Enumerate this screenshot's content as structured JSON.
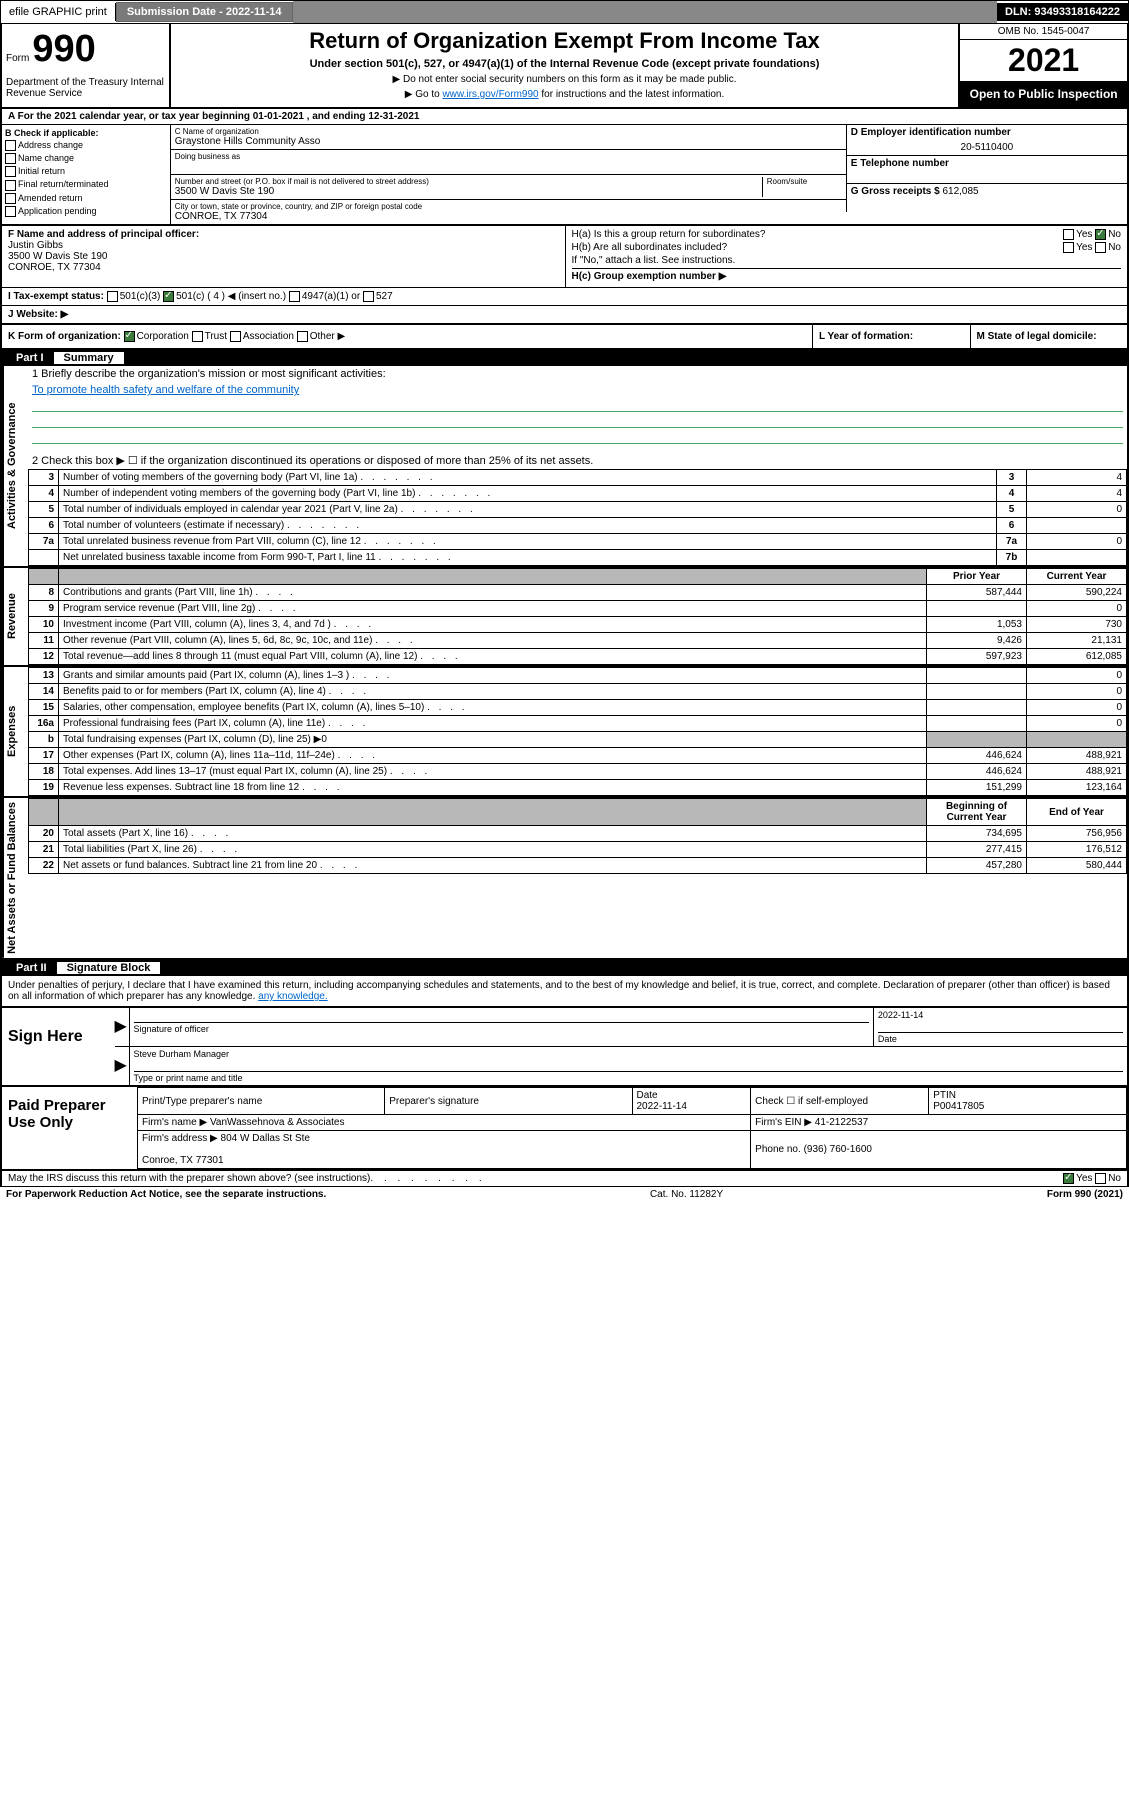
{
  "topbar": {
    "efile": "efile GRAPHIC print",
    "submission_label": "Submission Date - 2022-11-14",
    "dln_label": "DLN: 93493318164222"
  },
  "header": {
    "form_word": "Form",
    "form_num": "990",
    "dept": "Department of the Treasury\nInternal Revenue Service",
    "title": "Return of Organization Exempt From Income Tax",
    "sub": "Under section 501(c), 527, or 4947(a)(1) of the Internal Revenue Code (except private foundations)",
    "line1": "▶ Do not enter social security numbers on this form as it may be made public.",
    "line2_pre": "▶ Go to ",
    "line2_link": "www.irs.gov/Form990",
    "line2_post": " for instructions and the latest information.",
    "omb": "OMB No. 1545-0047",
    "year": "2021",
    "open": "Open to Public Inspection"
  },
  "period": "A For the 2021 calendar year, or tax year beginning 01-01-2021   , and ending 12-31-2021",
  "B": {
    "label": "B Check if applicable:",
    "opts": [
      "Address change",
      "Name change",
      "Initial return",
      "Final return/terminated",
      "Amended return",
      "Application pending"
    ]
  },
  "C": {
    "name_lbl": "C Name of organization",
    "name": "Graystone Hills Community Asso",
    "dba_lbl": "Doing business as",
    "street_lbl": "Number and street (or P.O. box if mail is not delivered to street address)",
    "room_lbl": "Room/suite",
    "street": "3500 W Davis Ste 190",
    "city_lbl": "City or town, state or province, country, and ZIP or foreign postal code",
    "city": "CONROE, TX  77304"
  },
  "D": {
    "lbl": "D Employer identification number",
    "val": "20-5110400"
  },
  "E": {
    "lbl": "E Telephone number",
    "val": ""
  },
  "G": {
    "lbl": "G Gross receipts $",
    "val": "612,085"
  },
  "F": {
    "lbl": "F Name and address of principal officer:",
    "name": "Justin Gibbs",
    "addr1": "3500 W Davis Ste 190",
    "addr2": "CONROE, TX  77304"
  },
  "H": {
    "a": "H(a)  Is this a group return for subordinates?",
    "a_yes": "Yes",
    "a_no": "No",
    "b": "H(b)  Are all subordinates included?",
    "b_yes": "Yes",
    "b_no": "No",
    "b_note": "If \"No,\" attach a list. See instructions.",
    "c": "H(c)  Group exemption number ▶"
  },
  "I": {
    "lbl": "I   Tax-exempt status:",
    "o1": "501(c)(3)",
    "o2": "501(c) ( 4 ) ◀ (insert no.)",
    "o3": "4947(a)(1) or",
    "o4": "527"
  },
  "J": {
    "lbl": "J   Website: ▶"
  },
  "K": {
    "lbl": "K Form of organization:",
    "o1": "Corporation",
    "o2": "Trust",
    "o3": "Association",
    "o4": "Other ▶"
  },
  "L": {
    "lbl": "L Year of formation:"
  },
  "M": {
    "lbl": "M State of legal domicile:"
  },
  "partI": {
    "num": "Part I",
    "title": "Summary"
  },
  "mission": {
    "q": "1   Briefly describe the organization's mission or most significant activities:",
    "text": "To promote health safety and welfare of the community"
  },
  "line2": "2    Check this box ▶ ☐  if the organization discontinued its operations or disposed of more than 25% of its net assets.",
  "vtabs": {
    "ag": "Activities & Governance",
    "rev": "Revenue",
    "exp": "Expenses",
    "na": "Net Assets or Fund Balances"
  },
  "rows_ag": [
    {
      "n": "3",
      "t": "Number of voting members of the governing body (Part VI, line 1a)",
      "box": "3",
      "v": "4"
    },
    {
      "n": "4",
      "t": "Number of independent voting members of the governing body (Part VI, line 1b)",
      "box": "4",
      "v": "4"
    },
    {
      "n": "5",
      "t": "Total number of individuals employed in calendar year 2021 (Part V, line 2a)",
      "box": "5",
      "v": "0"
    },
    {
      "n": "6",
      "t": "Total number of volunteers (estimate if necessary)",
      "box": "6",
      "v": ""
    },
    {
      "n": "7a",
      "t": "Total unrelated business revenue from Part VIII, column (C), line 12",
      "box": "7a",
      "v": "0"
    },
    {
      "n": "",
      "t": "Net unrelated business taxable income from Form 990-T, Part I, line 11",
      "box": "7b",
      "v": ""
    }
  ],
  "col_hdrs": {
    "prior": "Prior Year",
    "current": "Current Year",
    "boy": "Beginning of Current Year",
    "eoy": "End of Year"
  },
  "rows_rev": [
    {
      "n": "8",
      "t": "Contributions and grants (Part VIII, line 1h)",
      "p": "587,444",
      "c": "590,224"
    },
    {
      "n": "9",
      "t": "Program service revenue (Part VIII, line 2g)",
      "p": "",
      "c": "0"
    },
    {
      "n": "10",
      "t": "Investment income (Part VIII, column (A), lines 3, 4, and 7d )",
      "p": "1,053",
      "c": "730"
    },
    {
      "n": "11",
      "t": "Other revenue (Part VIII, column (A), lines 5, 6d, 8c, 9c, 10c, and 11e)",
      "p": "9,426",
      "c": "21,131"
    },
    {
      "n": "12",
      "t": "Total revenue—add lines 8 through 11 (must equal Part VIII, column (A), line 12)",
      "p": "597,923",
      "c": "612,085"
    }
  ],
  "rows_exp": [
    {
      "n": "13",
      "t": "Grants and similar amounts paid (Part IX, column (A), lines 1–3 )",
      "p": "",
      "c": "0"
    },
    {
      "n": "14",
      "t": "Benefits paid to or for members (Part IX, column (A), line 4)",
      "p": "",
      "c": "0"
    },
    {
      "n": "15",
      "t": "Salaries, other compensation, employee benefits (Part IX, column (A), lines 5–10)",
      "p": "",
      "c": "0"
    },
    {
      "n": "16a",
      "t": "Professional fundraising fees (Part IX, column (A), line 11e)",
      "p": "",
      "c": "0"
    },
    {
      "n": "b",
      "t": "Total fundraising expenses (Part IX, column (D), line 25) ▶0",
      "grey": true
    },
    {
      "n": "17",
      "t": "Other expenses (Part IX, column (A), lines 11a–11d, 11f–24e)",
      "p": "446,624",
      "c": "488,921"
    },
    {
      "n": "18",
      "t": "Total expenses. Add lines 13–17 (must equal Part IX, column (A), line 25)",
      "p": "446,624",
      "c": "488,921"
    },
    {
      "n": "19",
      "t": "Revenue less expenses. Subtract line 18 from line 12",
      "p": "151,299",
      "c": "123,164"
    }
  ],
  "rows_na": [
    {
      "n": "20",
      "t": "Total assets (Part X, line 16)",
      "p": "734,695",
      "c": "756,956"
    },
    {
      "n": "21",
      "t": "Total liabilities (Part X, line 26)",
      "p": "277,415",
      "c": "176,512"
    },
    {
      "n": "22",
      "t": "Net assets or fund balances. Subtract line 21 from line 20",
      "p": "457,280",
      "c": "580,444"
    }
  ],
  "partII": {
    "num": "Part II",
    "title": "Signature Block"
  },
  "decl": "Under penalties of perjury, I declare that I have examined this return, including accompanying schedules and statements, and to the best of my knowledge and belief, it is true, correct, and complete. Declaration of preparer (other than officer) is based on all information of which preparer has any knowledge.",
  "sign": {
    "here": "Sign Here",
    "sig_lbl": "Signature of officer",
    "date_lbl": "Date",
    "date_val": "2022-11-14",
    "name": "Steve Durham Manager",
    "name_lbl": "Type or print name and title"
  },
  "prep": {
    "here": "Paid Preparer Use Only",
    "h1": "Print/Type preparer's name",
    "h2": "Preparer's signature",
    "h3": "Date",
    "h4": "Check ☐ if self-employed",
    "h5": "PTIN",
    "date": "2022-11-14",
    "ptin": "P00417805",
    "firm_lbl": "Firm's name    ▶",
    "firm": "VanWassehnova & Associates",
    "ein_lbl": "Firm's EIN ▶",
    "ein": "41-2122537",
    "addr_lbl": "Firm's address ▶",
    "addr": "804 W Dallas St Ste\n\nConroe, TX  77301",
    "phone_lbl": "Phone no.",
    "phone": "(936) 760-1600"
  },
  "footer": {
    "discuss": "May the IRS discuss this return with the preparer shown above? (see instructions)",
    "yes": "Yes",
    "no": "No",
    "pra": "For Paperwork Reduction Act Notice, see the separate instructions.",
    "cat": "Cat. No. 11282Y",
    "formref": "Form 990 (2021)"
  }
}
